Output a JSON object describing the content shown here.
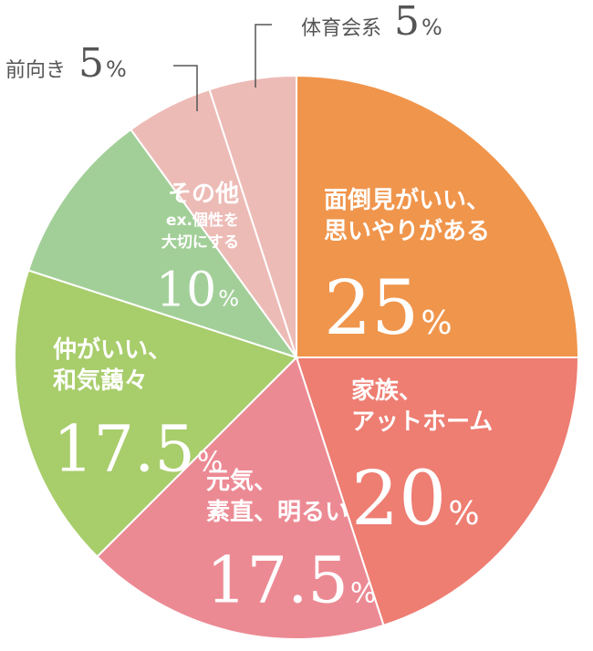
{
  "chart_data": {
    "type": "pie",
    "start_angle_deg": 0,
    "direction": "clockwise",
    "slices": [
      {
        "label_lines": [
          "面倒見がいい、",
          "思いやりがある"
        ],
        "value": 25,
        "value_text": "25",
        "color": "#F0954C",
        "placement": "inside"
      },
      {
        "label_lines": [
          "家族、",
          "アットホーム"
        ],
        "value": 20,
        "value_text": "20",
        "color": "#EE7D72",
        "placement": "inside"
      },
      {
        "label_lines": [
          "元気、",
          "素直、明るい"
        ],
        "value": 17.5,
        "value_text": "17.5",
        "color": "#EC8A94",
        "placement": "inside"
      },
      {
        "label_lines": [
          "仲がいい、",
          "和気藹々"
        ],
        "value": 17.5,
        "value_text": "17.5",
        "color": "#A8CD6B",
        "placement": "inside"
      },
      {
        "label_lines": [
          "その他",
          "ex.個性を",
          "大切にする"
        ],
        "value": 10,
        "value_text": "10",
        "color": "#A2CF98",
        "placement": "inside"
      },
      {
        "label_lines": [
          "前向き"
        ],
        "value": 5,
        "value_text": "5",
        "color": "#EDBBB6",
        "placement": "outside"
      },
      {
        "label_lines": [
          "体育会系"
        ],
        "value": 5,
        "value_text": "5",
        "color": "#EDBBB6",
        "placement": "outside"
      }
    ],
    "percent_symbol": "%"
  }
}
